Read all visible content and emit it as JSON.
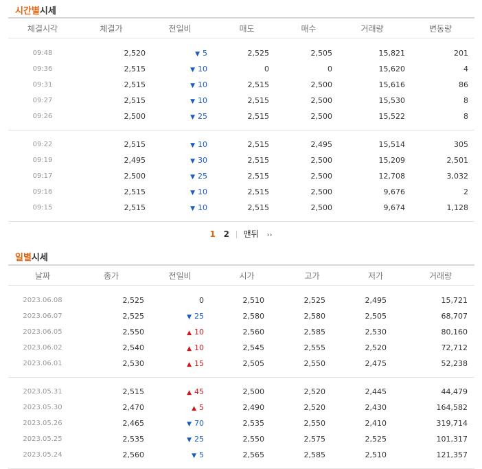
{
  "hourly": {
    "title_accent": "시간별",
    "title_rest": "시세",
    "headers": [
      "체결시각",
      "체결가",
      "전일비",
      "매도",
      "매수",
      "거래량",
      "변동량"
    ],
    "groups": [
      [
        {
          "time": "09:48",
          "price": "2,520",
          "dir": "down",
          "change": "5",
          "ask": "2,525",
          "bid": "2,505",
          "volume": "15,821",
          "delta": "201"
        },
        {
          "time": "09:36",
          "price": "2,515",
          "dir": "down",
          "change": "10",
          "ask": "0",
          "bid": "0",
          "volume": "15,620",
          "delta": "4"
        },
        {
          "time": "09:31",
          "price": "2,515",
          "dir": "down",
          "change": "10",
          "ask": "2,515",
          "bid": "2,500",
          "volume": "15,616",
          "delta": "86"
        },
        {
          "time": "09:27",
          "price": "2,515",
          "dir": "down",
          "change": "10",
          "ask": "2,515",
          "bid": "2,500",
          "volume": "15,530",
          "delta": "8"
        },
        {
          "time": "09:26",
          "price": "2,500",
          "dir": "down",
          "change": "25",
          "ask": "2,515",
          "bid": "2,500",
          "volume": "15,522",
          "delta": "8"
        }
      ],
      [
        {
          "time": "09:22",
          "price": "2,515",
          "dir": "down",
          "change": "10",
          "ask": "2,515",
          "bid": "2,495",
          "volume": "15,514",
          "delta": "305"
        },
        {
          "time": "09:19",
          "price": "2,495",
          "dir": "down",
          "change": "30",
          "ask": "2,515",
          "bid": "2,500",
          "volume": "15,209",
          "delta": "2,501"
        },
        {
          "time": "09:17",
          "price": "2,500",
          "dir": "down",
          "change": "25",
          "ask": "2,515",
          "bid": "2,500",
          "volume": "12,708",
          "delta": "3,032"
        },
        {
          "time": "09:16",
          "price": "2,515",
          "dir": "down",
          "change": "10",
          "ask": "2,515",
          "bid": "2,500",
          "volume": "9,676",
          "delta": "2"
        },
        {
          "time": "09:15",
          "price": "2,515",
          "dir": "down",
          "change": "10",
          "ask": "2,515",
          "bid": "2,500",
          "volume": "9,674",
          "delta": "1,128"
        }
      ]
    ]
  },
  "pager": {
    "page1": "1",
    "page2": "2",
    "last": "맨뒤",
    "next": "››"
  },
  "daily": {
    "title_accent": "일별",
    "title_rest": "시세",
    "headers": [
      "날짜",
      "종가",
      "전일비",
      "시가",
      "고가",
      "저가",
      "거래량"
    ],
    "groups": [
      [
        {
          "date": "2023.06.08",
          "close": "2,525",
          "dir": "none",
          "change": "0",
          "open": "2,510",
          "high": "2,525",
          "low": "2,495",
          "volume": "15,721"
        },
        {
          "date": "2023.06.07",
          "close": "2,525",
          "dir": "down",
          "change": "25",
          "open": "2,580",
          "high": "2,580",
          "low": "2,505",
          "volume": "68,707"
        },
        {
          "date": "2023.06.05",
          "close": "2,550",
          "dir": "up",
          "change": "10",
          "open": "2,560",
          "high": "2,585",
          "low": "2,530",
          "volume": "80,160"
        },
        {
          "date": "2023.06.02",
          "close": "2,540",
          "dir": "up",
          "change": "10",
          "open": "2,545",
          "high": "2,555",
          "low": "2,520",
          "volume": "72,712"
        },
        {
          "date": "2023.06.01",
          "close": "2,530",
          "dir": "up",
          "change": "15",
          "open": "2,505",
          "high": "2,550",
          "low": "2,475",
          "volume": "52,238"
        }
      ],
      [
        {
          "date": "2023.05.31",
          "close": "2,515",
          "dir": "up",
          "change": "45",
          "open": "2,500",
          "high": "2,520",
          "low": "2,445",
          "volume": "44,479"
        },
        {
          "date": "2023.05.30",
          "close": "2,470",
          "dir": "up",
          "change": "5",
          "open": "2,490",
          "high": "2,520",
          "low": "2,430",
          "volume": "164,582"
        },
        {
          "date": "2023.05.26",
          "close": "2,465",
          "dir": "down",
          "change": "70",
          "open": "2,535",
          "high": "2,550",
          "low": "2,410",
          "volume": "319,714"
        },
        {
          "date": "2023.05.25",
          "close": "2,535",
          "dir": "down",
          "change": "25",
          "open": "2,550",
          "high": "2,575",
          "low": "2,525",
          "volume": "101,317"
        },
        {
          "date": "2023.05.24",
          "close": "2,560",
          "dir": "down",
          "change": "5",
          "open": "2,565",
          "high": "2,585",
          "low": "2,510",
          "volume": "121,357"
        }
      ]
    ]
  },
  "icons": {
    "down": "triangle-down-icon",
    "up": "triangle-up-icon"
  },
  "colors": {
    "accent": "#e8620c",
    "down": "#1a5bc4",
    "up": "#d0161b"
  }
}
